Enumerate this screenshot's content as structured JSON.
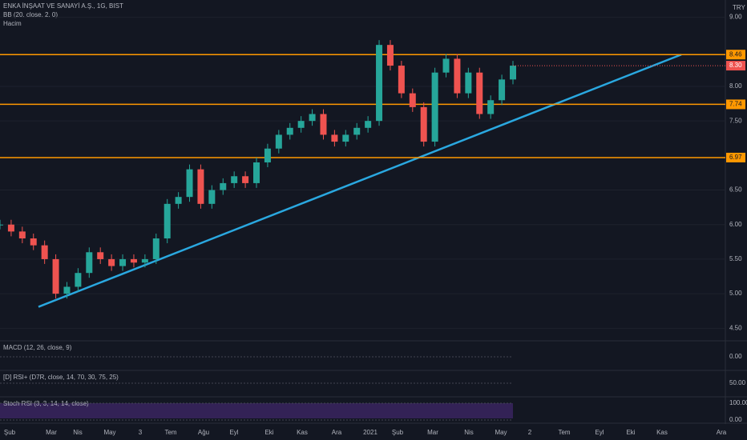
{
  "header": {
    "title": "ENKA İNŞAAT VE SANAYİ A.Ş., 1G, BIST",
    "indicators": [
      "BB (20, close, 2, 0)",
      "Hacim"
    ],
    "currency": "TRY"
  },
  "chart_data": {
    "type": "candles",
    "values": [
      6.0,
      5.9,
      5.8,
      5.7,
      5.5,
      5.0,
      5.1,
      5.3,
      5.6,
      5.5,
      5.4,
      5.5,
      5.45,
      5.5,
      5.8,
      6.3,
      6.4,
      6.8,
      6.3,
      6.5,
      6.6,
      6.7,
      6.6,
      6.9,
      7.1,
      7.3,
      7.4,
      7.5,
      7.6,
      7.3,
      7.2,
      7.3,
      7.4,
      7.5,
      8.6,
      8.3,
      7.9,
      7.7,
      7.2,
      8.2,
      8.4,
      7.9,
      8.2,
      7.6,
      7.8,
      8.1,
      8.3
    ],
    "up_color": "#26a69a",
    "down_color": "#ef5350",
    "ylim": [
      4.33,
      9.25
    ],
    "yticks": [
      {
        "value": 9,
        "label": "9.00"
      },
      {
        "value": 8,
        "label": "8.00"
      },
      {
        "value": 7.5,
        "label": "7.50"
      },
      {
        "value": 6.5,
        "label": "6.50"
      },
      {
        "value": 6,
        "label": "6.00"
      },
      {
        "value": 5.5,
        "label": "5.50"
      },
      {
        "value": 5,
        "label": "5.00"
      },
      {
        "value": 4.5,
        "label": "4.50"
      }
    ],
    "levels": [
      {
        "value": 8.46,
        "label": "8.46"
      },
      {
        "value": 7.74,
        "label": "7.74"
      },
      {
        "value": 6.97,
        "label": "6.97"
      }
    ],
    "level_color": "#ff9800",
    "last_price": {
      "value": 8.3,
      "label": "8.30"
    },
    "trendline": [
      4.81,
      8.46
    ],
    "trend_color": "#2aa8e0",
    "x_labels": [
      "Şub",
      "Mar",
      "Nis",
      "May",
      "3",
      "Tem",
      "Ağu",
      "Eyl",
      "Eki",
      "Kas",
      "Ara",
      "2021",
      "Şub",
      "Mar",
      "Nis",
      "May",
      "2",
      "Tem",
      "Eyl",
      "Eki",
      "Kas",
      "Ara"
    ]
  },
  "panes": [
    {
      "title": "MACD (12, 26, close, 9)",
      "ticks": [
        {
          "value": 0,
          "label": "0.00"
        }
      ]
    },
    {
      "title": "[D] RSI+ (D7R, close, 14, 70, 30, 75, 25)",
      "ticks": [
        {
          "value": 50,
          "label": "50.00"
        }
      ]
    },
    {
      "title": "Stoch RSI (3, 3, 14, 14, close)",
      "ticks": [
        {
          "value": 100,
          "label": "100.00"
        },
        {
          "value": 0,
          "label": "0.00"
        }
      ]
    }
  ]
}
